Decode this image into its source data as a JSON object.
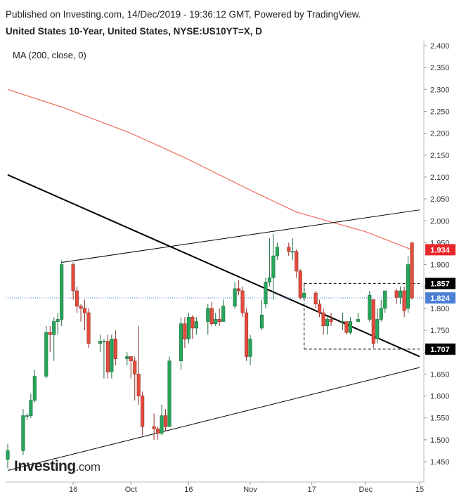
{
  "header": {
    "published": "Published on Investing.com, 14/Dec/2019 - 19:36:12 GMT, Powered by TradingView.",
    "title": "United States 10-Year, United States, NYSE:US10YT=X, D"
  },
  "indicator_label": "MA (200, close, 0)",
  "logo": {
    "main": "Investing",
    "suffix": ".com"
  },
  "colors": {
    "up": "#26a65b",
    "down": "#e74c3c",
    "ma": "#f26b5b",
    "last": "#e8262b",
    "current": "#4a7fd4",
    "trend": "#000000"
  },
  "chart_data": {
    "type": "candlestick",
    "y_range": [
      1.4,
      2.41
    ],
    "y_ticks": [
      "2.400",
      "2.350",
      "2.300",
      "2.250",
      "2.200",
      "2.150",
      "2.100",
      "2.050",
      "2.000",
      "1.950",
      "1.900",
      "1.850",
      "1.800",
      "1.750",
      "1.700",
      "1.650",
      "1.600",
      "1.550",
      "1.500",
      "1.450"
    ],
    "x_ticks": [
      {
        "label": "16",
        "date": "2019-09-16"
      },
      {
        "label": "Oct",
        "date": "2019-10-01"
      },
      {
        "label": "16",
        "date": "2019-10-16"
      },
      {
        "label": "Nov",
        "date": "2019-11-01"
      },
      {
        "label": "17",
        "date": "2019-11-17"
      },
      {
        "label": "Dec",
        "date": "2019-12-01"
      },
      {
        "label": "15",
        "date": "2019-12-15"
      }
    ],
    "price_labels": [
      {
        "text": "1.934",
        "value": 1.934,
        "role": "last"
      },
      {
        "text": "1.857",
        "value": 1.857,
        "role": "level"
      },
      {
        "text": "1.824",
        "value": 1.824,
        "role": "current"
      },
      {
        "text": "1.707",
        "value": 1.707,
        "role": "level"
      }
    ],
    "candles": [
      {
        "date": "2019-08-30",
        "o": 1.455,
        "h": 1.49,
        "l": 1.435,
        "c": 1.475
      },
      {
        "date": "2019-09-03",
        "o": 1.475,
        "h": 1.57,
        "l": 1.465,
        "c": 1.555
      },
      {
        "date": "2019-09-04",
        "o": 1.555,
        "h": 1.56,
        "l": 1.545,
        "c": 1.555
      },
      {
        "date": "2019-09-05",
        "o": 1.555,
        "h": 1.605,
        "l": 1.55,
        "c": 1.59
      },
      {
        "date": "2019-09-06",
        "o": 1.59,
        "h": 1.66,
        "l": 1.585,
        "c": 1.645
      },
      {
        "date": "2019-09-09",
        "o": 1.645,
        "h": 1.76,
        "l": 1.64,
        "c": 1.745
      },
      {
        "date": "2019-09-10",
        "o": 1.745,
        "h": 1.76,
        "l": 1.7,
        "c": 1.74
      },
      {
        "date": "2019-09-11",
        "o": 1.74,
        "h": 1.78,
        "l": 1.68,
        "c": 1.77
      },
      {
        "date": "2019-09-12",
        "o": 1.77,
        "h": 1.79,
        "l": 1.74,
        "c": 1.775
      },
      {
        "date": "2019-09-13",
        "o": 1.775,
        "h": 1.91,
        "l": 1.76,
        "c": 1.9
      },
      {
        "date": "2019-09-16",
        "o": 1.9,
        "h": 1.905,
        "l": 1.82,
        "c": 1.84
      },
      {
        "date": "2019-09-17",
        "o": 1.84,
        "h": 1.85,
        "l": 1.79,
        "c": 1.805
      },
      {
        "date": "2019-09-18",
        "o": 1.805,
        "h": 1.81,
        "l": 1.77,
        "c": 1.8
      },
      {
        "date": "2019-09-19",
        "o": 1.8,
        "h": 1.82,
        "l": 1.75,
        "c": 1.79
      },
      {
        "date": "2019-09-20",
        "o": 1.79,
        "h": 1.8,
        "l": 1.71,
        "c": 1.72
      },
      {
        "date": "2019-09-23",
        "o": 1.72,
        "h": 1.74,
        "l": 1.7,
        "c": 1.725
      },
      {
        "date": "2019-09-24",
        "o": 1.725,
        "h": 1.73,
        "l": 1.64,
        "c": 1.725
      },
      {
        "date": "2019-09-25",
        "o": 1.725,
        "h": 1.74,
        "l": 1.64,
        "c": 1.655
      },
      {
        "date": "2019-09-26",
        "o": 1.655,
        "h": 1.74,
        "l": 1.64,
        "c": 1.73
      },
      {
        "date": "2019-09-27",
        "o": 1.73,
        "h": 1.75,
        "l": 1.67,
        "c": 1.685
      },
      {
        "date": "2019-09-30",
        "o": 1.685,
        "h": 1.7,
        "l": 1.67,
        "c": 1.69
      },
      {
        "date": "2019-10-01",
        "o": 1.69,
        "h": 1.69,
        "l": 1.64,
        "c": 1.68
      },
      {
        "date": "2019-10-02",
        "o": 1.68,
        "h": 1.69,
        "l": 1.59,
        "c": 1.65
      },
      {
        "date": "2019-10-03",
        "o": 1.65,
        "h": 1.76,
        "l": 1.58,
        "c": 1.6
      },
      {
        "date": "2019-10-04",
        "o": 1.6,
        "h": 1.61,
        "l": 1.51,
        "c": 1.53
      },
      {
        "date": "2019-10-07",
        "o": 1.53,
        "h": 1.56,
        "l": 1.5,
        "c": 1.525
      },
      {
        "date": "2019-10-08",
        "o": 1.525,
        "h": 1.53,
        "l": 1.5,
        "c": 1.515
      },
      {
        "date": "2019-10-09",
        "o": 1.515,
        "h": 1.58,
        "l": 1.51,
        "c": 1.555
      },
      {
        "date": "2019-10-10",
        "o": 1.555,
        "h": 1.57,
        "l": 1.52,
        "c": 1.53
      },
      {
        "date": "2019-10-11",
        "o": 1.53,
        "h": 1.69,
        "l": 1.53,
        "c": 1.68
      },
      {
        "date": "2019-10-14",
        "o": 1.68,
        "h": 1.78,
        "l": 1.66,
        "c": 1.765
      },
      {
        "date": "2019-10-15",
        "o": 1.765,
        "h": 1.78,
        "l": 1.71,
        "c": 1.73
      },
      {
        "date": "2019-10-16",
        "o": 1.73,
        "h": 1.79,
        "l": 1.72,
        "c": 1.78
      },
      {
        "date": "2019-10-17",
        "o": 1.78,
        "h": 1.785,
        "l": 1.73,
        "c": 1.755
      },
      {
        "date": "2019-10-18",
        "o": 1.755,
        "h": 1.78,
        "l": 1.74,
        "c": 1.77
      },
      {
        "date": "2019-10-21",
        "o": 1.77,
        "h": 1.81,
        "l": 1.74,
        "c": 1.8
      },
      {
        "date": "2019-10-22",
        "o": 1.8,
        "h": 1.815,
        "l": 1.76,
        "c": 1.765
      },
      {
        "date": "2019-10-23",
        "o": 1.765,
        "h": 1.79,
        "l": 1.76,
        "c": 1.775
      },
      {
        "date": "2019-10-24",
        "o": 1.775,
        "h": 1.8,
        "l": 1.76,
        "c": 1.77
      },
      {
        "date": "2019-10-25",
        "o": 1.77,
        "h": 1.82,
        "l": 1.77,
        "c": 1.805
      },
      {
        "date": "2019-10-28",
        "o": 1.805,
        "h": 1.86,
        "l": 1.8,
        "c": 1.845
      },
      {
        "date": "2019-10-29",
        "o": 1.845,
        "h": 1.865,
        "l": 1.83,
        "c": 1.84
      },
      {
        "date": "2019-10-30",
        "o": 1.84,
        "h": 1.85,
        "l": 1.78,
        "c": 1.79
      },
      {
        "date": "2019-10-31",
        "o": 1.79,
        "h": 1.8,
        "l": 1.68,
        "c": 1.69
      },
      {
        "date": "2019-11-01",
        "o": 1.69,
        "h": 1.74,
        "l": 1.67,
        "c": 1.73
      },
      {
        "date": "2019-11-04",
        "o": 1.755,
        "h": 1.82,
        "l": 1.75,
        "c": 1.785
      },
      {
        "date": "2019-11-05",
        "o": 1.81,
        "h": 1.87,
        "l": 1.8,
        "c": 1.86
      },
      {
        "date": "2019-11-06",
        "o": 1.86,
        "h": 1.96,
        "l": 1.85,
        "c": 1.87
      },
      {
        "date": "2019-11-07",
        "o": 1.87,
        "h": 1.97,
        "l": 1.82,
        "c": 1.92
      },
      {
        "date": "2019-11-08",
        "o": 1.92,
        "h": 1.95,
        "l": 1.91,
        "c": 1.94
      },
      {
        "date": "2019-11-11",
        "o": 1.94,
        "h": 1.95,
        "l": 1.92,
        "c": 1.93
      },
      {
        "date": "2019-11-12",
        "o": 1.93,
        "h": 1.96,
        "l": 1.91,
        "c": 1.93
      },
      {
        "date": "2019-11-13",
        "o": 1.93,
        "h": 1.935,
        "l": 1.87,
        "c": 1.885
      },
      {
        "date": "2019-11-14",
        "o": 1.885,
        "h": 1.89,
        "l": 1.82,
        "c": 1.825
      },
      {
        "date": "2019-11-15",
        "o": 1.825,
        "h": 1.85,
        "l": 1.82,
        "c": 1.835
      },
      {
        "date": "2019-11-18",
        "o": 1.835,
        "h": 1.84,
        "l": 1.8,
        "c": 1.81
      },
      {
        "date": "2019-11-19",
        "o": 1.81,
        "h": 1.82,
        "l": 1.78,
        "c": 1.79
      },
      {
        "date": "2019-11-20",
        "o": 1.79,
        "h": 1.8,
        "l": 1.74,
        "c": 1.76
      },
      {
        "date": "2019-11-21",
        "o": 1.76,
        "h": 1.78,
        "l": 1.74,
        "c": 1.775
      },
      {
        "date": "2019-11-22",
        "o": 1.775,
        "h": 1.79,
        "l": 1.76,
        "c": 1.77
      },
      {
        "date": "2019-11-25",
        "o": 1.77,
        "h": 1.79,
        "l": 1.75,
        "c": 1.77
      },
      {
        "date": "2019-11-26",
        "o": 1.77,
        "h": 1.77,
        "l": 1.74,
        "c": 1.745
      },
      {
        "date": "2019-11-27",
        "o": 1.745,
        "h": 1.78,
        "l": 1.74,
        "c": 1.77
      },
      {
        "date": "2019-11-29",
        "o": 1.77,
        "h": 1.79,
        "l": 1.77,
        "c": 1.775
      },
      {
        "date": "2019-12-02",
        "o": 1.775,
        "h": 1.84,
        "l": 1.77,
        "c": 1.83
      },
      {
        "date": "2019-12-03",
        "o": 1.82,
        "h": 1.82,
        "l": 1.71,
        "c": 1.72
      },
      {
        "date": "2019-12-04",
        "o": 1.73,
        "h": 1.8,
        "l": 1.72,
        "c": 1.775
      },
      {
        "date": "2019-12-05",
        "o": 1.775,
        "h": 1.82,
        "l": 1.77,
        "c": 1.8
      },
      {
        "date": "2019-12-06",
        "o": 1.8,
        "h": 1.84,
        "l": 1.79,
        "c": 1.84
      },
      {
        "date": "2019-12-09",
        "o": 1.84,
        "h": 1.845,
        "l": 1.81,
        "c": 1.825
      },
      {
        "date": "2019-12-10",
        "o": 1.825,
        "h": 1.85,
        "l": 1.81,
        "c": 1.84
      },
      {
        "date": "2019-12-11",
        "o": 1.84,
        "h": 1.85,
        "l": 1.78,
        "c": 1.795
      },
      {
        "date": "2019-12-12",
        "o": 1.8,
        "h": 1.92,
        "l": 1.79,
        "c": 1.9
      },
      {
        "date": "2019-12-13",
        "o": 1.95,
        "h": 1.95,
        "l": 1.82,
        "c": 1.824
      }
    ],
    "ma_200": [
      {
        "date": "2019-08-30",
        "v": 2.3
      },
      {
        "date": "2019-09-13",
        "v": 2.26
      },
      {
        "date": "2019-10-01",
        "v": 2.2
      },
      {
        "date": "2019-10-16",
        "v": 2.14
      },
      {
        "date": "2019-11-01",
        "v": 2.07
      },
      {
        "date": "2019-11-13",
        "v": 2.02
      },
      {
        "date": "2019-12-01",
        "v": 1.975
      },
      {
        "date": "2019-12-13",
        "v": 1.934
      }
    ],
    "trendlines": [
      {
        "name": "falling-trendline",
        "points": [
          {
            "date": "2019-08-30",
            "v": 2.105
          },
          {
            "date": "2019-12-15",
            "v": 1.69
          }
        ]
      },
      {
        "name": "upper-channel-line",
        "points": [
          {
            "date": "2019-09-13",
            "v": 1.905
          },
          {
            "date": "2019-12-15",
            "v": 2.025
          }
        ]
      },
      {
        "name": "lower-channel-line",
        "points": [
          {
            "date": "2019-08-30",
            "v": 1.43
          },
          {
            "date": "2019-12-15",
            "v": 1.665
          }
        ]
      }
    ],
    "range_box": {
      "start": "2019-11-15",
      "end": "2019-12-15",
      "high": 1.857,
      "low": 1.707
    }
  }
}
